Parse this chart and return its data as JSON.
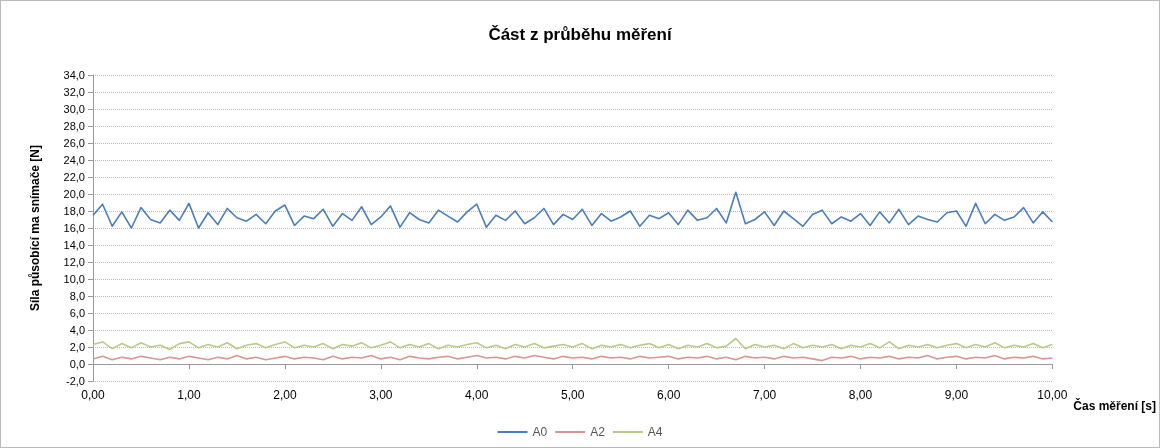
{
  "chart_data": {
    "type": "line",
    "title": "Část z průběhu měření",
    "xlabel": "Čas měření [s]",
    "ylabel": "Síla působící ma snímače [N]",
    "x": [
      0,
      0.1,
      0.2,
      0.3,
      0.4,
      0.5,
      0.6,
      0.7,
      0.8,
      0.9,
      1,
      1.1,
      1.2,
      1.3,
      1.4,
      1.5,
      1.6,
      1.7,
      1.8,
      1.9,
      2,
      2.1,
      2.2,
      2.3,
      2.4,
      2.5,
      2.6,
      2.7,
      2.8,
      2.9,
      3,
      3.1,
      3.2,
      3.3,
      3.4,
      3.5,
      3.6,
      3.7,
      3.8,
      3.9,
      4,
      4.1,
      4.2,
      4.3,
      4.4,
      4.5,
      4.6,
      4.7,
      4.8,
      4.9,
      5,
      5.1,
      5.2,
      5.3,
      5.4,
      5.5,
      5.6,
      5.7,
      5.8,
      5.9,
      6,
      6.1,
      6.2,
      6.3,
      6.4,
      6.5,
      6.6,
      6.7,
      6.8,
      6.9,
      7,
      7.1,
      7.2,
      7.3,
      7.4,
      7.5,
      7.6,
      7.7,
      7.8,
      7.9,
      8,
      8.1,
      8.2,
      8.3,
      8.4,
      8.5,
      8.6,
      8.7,
      8.8,
      8.9,
      9,
      9.1,
      9.2,
      9.3,
      9.4,
      9.5,
      9.6,
      9.7,
      9.8,
      9.9,
      10
    ],
    "series": [
      {
        "name": "A0",
        "color": "#4a7ebb",
        "values": [
          17.5,
          18.8,
          16.2,
          17.9,
          16.0,
          18.4,
          17.0,
          16.6,
          18.1,
          16.9,
          18.9,
          16.0,
          17.8,
          16.4,
          18.3,
          17.2,
          16.8,
          17.6,
          16.5,
          18.0,
          18.7,
          16.3,
          17.4,
          17.1,
          18.2,
          16.2,
          17.7,
          16.9,
          18.5,
          16.4,
          17.3,
          18.6,
          16.1,
          17.8,
          17.0,
          16.6,
          18.1,
          17.4,
          16.7,
          17.9,
          18.8,
          16.1,
          17.5,
          16.9,
          18.0,
          16.5,
          17.2,
          18.3,
          16.4,
          17.6,
          17.0,
          18.2,
          16.3,
          17.7,
          16.8,
          17.3,
          18.0,
          16.2,
          17.5,
          17.1,
          17.8,
          16.4,
          18.1,
          16.9,
          17.2,
          18.3,
          16.6,
          20.2,
          16.5,
          17.0,
          17.9,
          16.3,
          18.0,
          17.1,
          16.2,
          17.6,
          18.1,
          16.5,
          17.3,
          16.8,
          17.7,
          16.3,
          17.9,
          16.6,
          18.2,
          16.4,
          17.4,
          17.0,
          16.7,
          17.8,
          18.0,
          16.2,
          18.9,
          16.5,
          17.6,
          16.9,
          17.3,
          18.4,
          16.6,
          17.9,
          16.7
        ]
      },
      {
        "name": "A2",
        "color": "#d99694",
        "values": [
          0.6,
          0.9,
          0.5,
          0.8,
          0.6,
          0.9,
          0.7,
          0.5,
          0.8,
          0.6,
          0.9,
          0.7,
          0.5,
          0.8,
          0.6,
          1.0,
          0.6,
          0.8,
          0.5,
          0.7,
          0.9,
          0.6,
          0.8,
          0.7,
          0.5,
          0.9,
          0.6,
          0.8,
          0.7,
          1.0,
          0.6,
          0.8,
          0.5,
          0.9,
          0.7,
          0.6,
          0.8,
          0.9,
          0.6,
          0.8,
          1.0,
          0.7,
          0.8,
          0.6,
          0.9,
          0.7,
          1.0,
          0.8,
          0.6,
          0.9,
          0.7,
          0.8,
          0.6,
          0.9,
          0.7,
          0.8,
          0.6,
          0.9,
          0.7,
          0.8,
          0.9,
          0.6,
          0.8,
          0.7,
          0.9,
          0.6,
          0.8,
          0.5,
          0.9,
          0.7,
          0.8,
          0.6,
          0.9,
          0.7,
          0.8,
          0.6,
          0.4,
          0.8,
          0.7,
          0.9,
          0.6,
          0.8,
          0.7,
          0.9,
          0.6,
          0.8,
          0.7,
          1.0,
          0.6,
          0.8,
          0.9,
          0.6,
          0.8,
          0.7,
          1.0,
          0.6,
          0.8,
          0.7,
          0.9,
          0.6,
          0.7
        ]
      },
      {
        "name": "A4",
        "color": "#b7cb87",
        "values": [
          2.3,
          2.6,
          1.8,
          2.4,
          1.9,
          2.5,
          2.0,
          2.2,
          1.7,
          2.4,
          2.6,
          1.9,
          2.3,
          2.0,
          2.5,
          1.8,
          2.2,
          2.4,
          1.9,
          2.3,
          2.6,
          1.9,
          2.2,
          2.0,
          2.4,
          1.8,
          2.3,
          2.1,
          2.5,
          1.9,
          2.2,
          2.6,
          1.9,
          2.3,
          2.0,
          2.4,
          1.8,
          2.2,
          2.0,
          2.3,
          2.5,
          1.9,
          2.2,
          1.8,
          2.3,
          2.0,
          2.4,
          1.9,
          2.1,
          2.3,
          2.0,
          2.4,
          1.8,
          2.2,
          2.0,
          2.3,
          1.9,
          2.2,
          2.4,
          1.9,
          2.3,
          1.8,
          2.2,
          2.0,
          2.4,
          1.9,
          2.1,
          3.0,
          1.8,
          2.3,
          2.0,
          2.2,
          1.8,
          2.4,
          1.9,
          2.2,
          2.0,
          2.3,
          1.8,
          2.2,
          2.0,
          2.4,
          1.9,
          2.6,
          1.8,
          2.2,
          2.0,
          2.3,
          1.9,
          2.2,
          2.4,
          1.9,
          2.3,
          2.0,
          2.5,
          1.9,
          2.2,
          2.0,
          2.4,
          1.9,
          2.3
        ]
      }
    ],
    "xlim": [
      0,
      10
    ],
    "xticks": [
      {
        "value": 0,
        "label": "0,00"
      },
      {
        "value": 1,
        "label": "1,00"
      },
      {
        "value": 2,
        "label": "2,00"
      },
      {
        "value": 3,
        "label": "3,00"
      },
      {
        "value": 4,
        "label": "4,00"
      },
      {
        "value": 5,
        "label": "5,00"
      },
      {
        "value": 6,
        "label": "6,00"
      },
      {
        "value": 7,
        "label": "7,00"
      },
      {
        "value": 8,
        "label": "8,00"
      },
      {
        "value": 9,
        "label": "9,00"
      },
      {
        "value": 10,
        "label": "10,00"
      }
    ],
    "ylim": [
      -2,
      34
    ],
    "yticks": [
      {
        "value": -2,
        "label": "-2,0"
      },
      {
        "value": 0,
        "label": "0,0"
      },
      {
        "value": 2,
        "label": "2,0"
      },
      {
        "value": 4,
        "label": "4,0"
      },
      {
        "value": 6,
        "label": "6,0"
      },
      {
        "value": 8,
        "label": "8,0"
      },
      {
        "value": 10,
        "label": "10,0"
      },
      {
        "value": 12,
        "label": "12,0"
      },
      {
        "value": 14,
        "label": "14,0"
      },
      {
        "value": 16,
        "label": "16,0"
      },
      {
        "value": 18,
        "label": "18,0"
      },
      {
        "value": 20,
        "label": "20,0"
      },
      {
        "value": 22,
        "label": "22,0"
      },
      {
        "value": 24,
        "label": "24,0"
      },
      {
        "value": 26,
        "label": "26,0"
      },
      {
        "value": 28,
        "label": "28,0"
      },
      {
        "value": 30,
        "label": "30,0"
      },
      {
        "value": 32,
        "label": "32,0"
      },
      {
        "value": 34,
        "label": "34,0"
      }
    ],
    "grid": "y",
    "legend": "bottom",
    "marker": "none",
    "line_style": "solid"
  }
}
